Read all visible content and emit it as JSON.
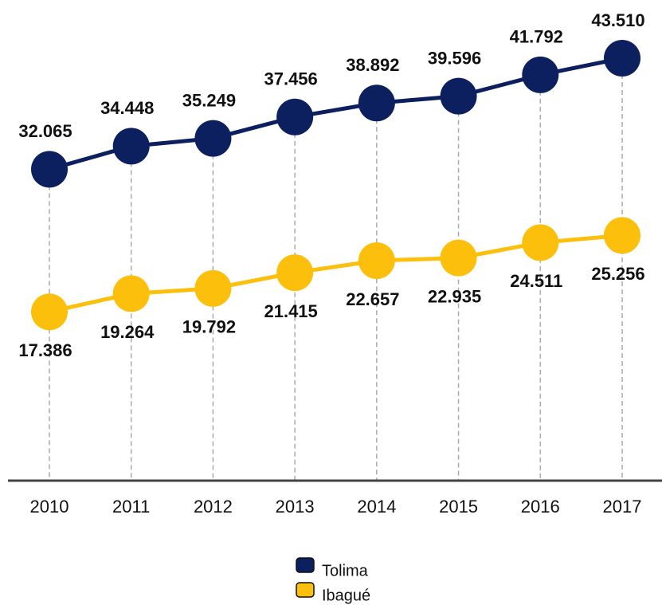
{
  "chart_data": {
    "type": "line",
    "categories": [
      "2010",
      "2011",
      "2012",
      "2013",
      "2014",
      "2015",
      "2016",
      "2017"
    ],
    "series": [
      {
        "name": "Tolima",
        "color": "#0c1f5e",
        "values": [
          32065,
          34448,
          35249,
          37456,
          38892,
          39596,
          41792,
          43510
        ],
        "value_labels": [
          "32.065",
          "34.448",
          "35.249",
          "37.456",
          "38.892",
          "39.596",
          "41.792",
          "43.510"
        ]
      },
      {
        "name": "Ibagué",
        "color": "#fbbf0c",
        "values": [
          17386,
          19264,
          19792,
          21415,
          22657,
          22935,
          24511,
          25256
        ],
        "value_labels": [
          "17.386",
          "19.264",
          "19.792",
          "21.415",
          "22.657",
          "22.935",
          "24.511",
          "25.256"
        ]
      }
    ],
    "ylim": [
      0,
      49500
    ]
  }
}
